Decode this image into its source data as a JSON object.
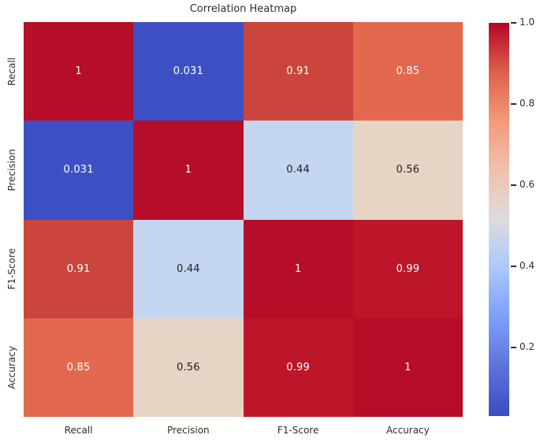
{
  "chart_data": {
    "type": "heatmap",
    "title": "Correlation Heatmap",
    "categories": [
      "Recall",
      "Precision",
      "F1-Score",
      "Accuracy"
    ],
    "matrix": [
      [
        1,
        0.031,
        0.91,
        0.85
      ],
      [
        0.031,
        1,
        0.44,
        0.56
      ],
      [
        0.91,
        0.44,
        1,
        0.99
      ],
      [
        0.85,
        0.56,
        0.99,
        1
      ]
    ],
    "cell_labels": [
      [
        "1",
        "0.031",
        "0.91",
        "0.85"
      ],
      [
        "0.031",
        "1",
        "0.44",
        "0.56"
      ],
      [
        "0.91",
        "0.44",
        "1",
        "0.99"
      ],
      [
        "0.85",
        "0.56",
        "0.99",
        "1"
      ]
    ],
    "cell_colors": [
      [
        "#b60d28",
        "#3d50c3",
        "#ca453c",
        "#e2694f"
      ],
      [
        "#3d50c3",
        "#b60d28",
        "#c5d6f2",
        "#e6d4c5"
      ],
      [
        "#ca453c",
        "#c5d6f2",
        "#b60d28",
        "#bd162b"
      ],
      [
        "#e2694f",
        "#e6d4c5",
        "#bd162b",
        "#b60d28"
      ]
    ],
    "cell_text_colors": [
      [
        "#ffffff",
        "#ffffff",
        "#ffffff",
        "#ffffff"
      ],
      [
        "#ffffff",
        "#ffffff",
        "#1f1f1f",
        "#1f1f1f"
      ],
      [
        "#ffffff",
        "#1f1f1f",
        "#ffffff",
        "#ffffff"
      ],
      [
        "#ffffff",
        "#1f1f1f",
        "#ffffff",
        "#ffffff"
      ]
    ],
    "colormap": "coolwarm",
    "vmin": 0.031,
    "vmax": 1.0,
    "colorbar": {
      "tick_labels": [
        "1.0",
        "0.8",
        "0.6",
        "0.4",
        "0.2"
      ],
      "tick_values": [
        1.0,
        0.8,
        0.6,
        0.4,
        0.2
      ],
      "gradient_stops": [
        {
          "pos": 0.0,
          "color": "#3b4cc0"
        },
        {
          "pos": 0.125,
          "color": "#5c73dc"
        },
        {
          "pos": 0.25,
          "color": "#7c9ff9"
        },
        {
          "pos": 0.375,
          "color": "#aac7fd"
        },
        {
          "pos": 0.5,
          "color": "#dddcdc"
        },
        {
          "pos": 0.625,
          "color": "#eec1ae"
        },
        {
          "pos": 0.75,
          "color": "#f49a7b"
        },
        {
          "pos": 0.875,
          "color": "#de604d"
        },
        {
          "pos": 1.0,
          "color": "#b40426"
        }
      ]
    }
  }
}
